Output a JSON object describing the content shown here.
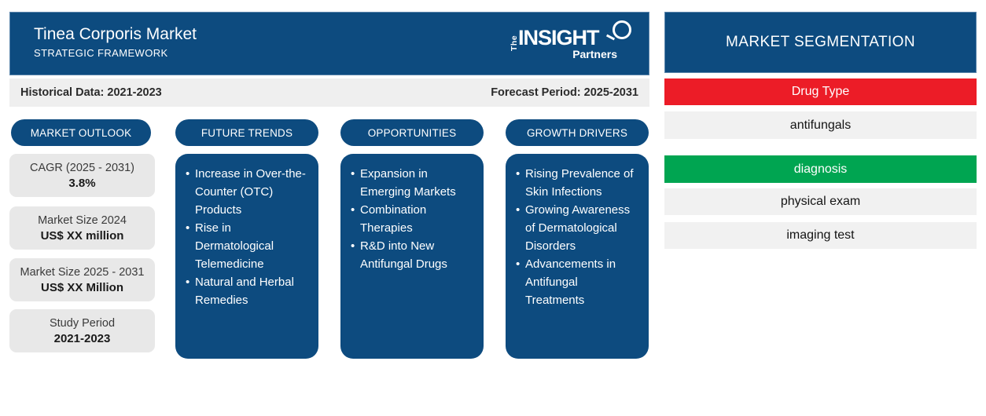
{
  "header": {
    "title": "Tinea Corporis Market",
    "subtitle": "STRATEGIC FRAMEWORK",
    "logo": {
      "the": "The",
      "insight": "INSIGHT",
      "partners": "Partners"
    }
  },
  "info_bar": {
    "historical": "Historical Data: 2021-2023",
    "forecast": "Forecast Period: 2025-2031"
  },
  "columns": {
    "market_outlook": {
      "label": "MARKET OUTLOOK",
      "cards": [
        {
          "label": "CAGR (2025 - 2031)",
          "value": "3.8%"
        },
        {
          "label": "Market Size 2024",
          "value": "US$ XX million"
        },
        {
          "label": "Market Size 2025 - 2031",
          "value": "US$ XX Million"
        },
        {
          "label": "Study Period",
          "value": "2021-2023"
        }
      ]
    },
    "future_trends": {
      "label": "FUTURE TRENDS",
      "items": [
        "Increase in Over-the-Counter (OTC) Products",
        "Rise in Dermatological Telemedicine",
        "Natural and Herbal Remedies"
      ]
    },
    "opportunities": {
      "label": "OPPORTUNITIES",
      "items": [
        "Expansion in Emerging Markets",
        "Combination Therapies",
        "R&D into New Antifungal Drugs"
      ]
    },
    "growth_drivers": {
      "label": "GROWTH DRIVERS",
      "items": [
        "Rising Prevalence of Skin Infections",
        "Growing Awareness of Dermatological Disorders",
        "Advancements in Antifungal Treatments"
      ]
    }
  },
  "segmentation": {
    "title": "MARKET SEGMENTATION",
    "rows": [
      {
        "label": "Drug Type"
      },
      {
        "label": "antifungals"
      },
      {
        "label": "diagnosis"
      },
      {
        "label": "physical exam"
      },
      {
        "label": "imaging test"
      }
    ]
  },
  "colors": {
    "primary_blue": "#0d4b7f",
    "accent_red": "#ec1c27",
    "accent_green": "#00a551",
    "row_gray": "#f1f1f1",
    "card_gray": "#e8e8e8"
  }
}
